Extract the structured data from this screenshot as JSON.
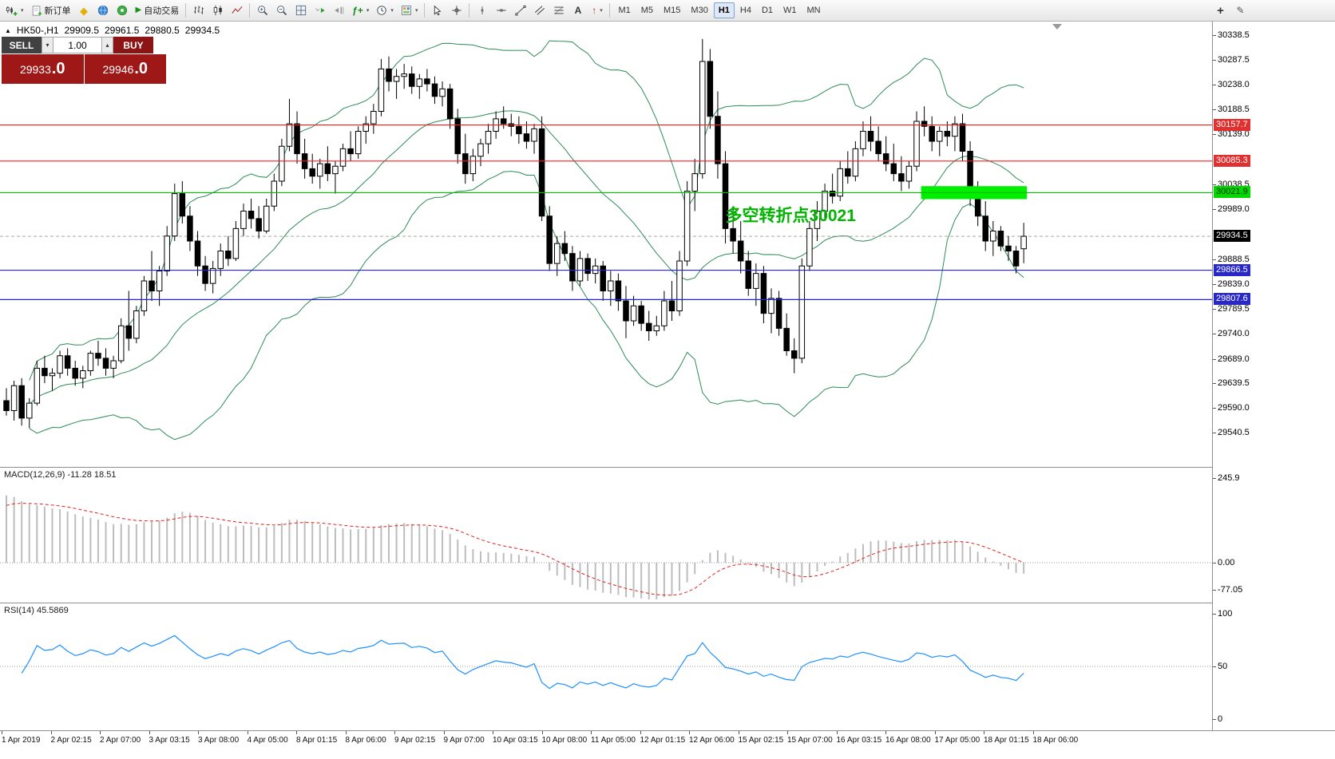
{
  "toolbar": {
    "caret_glyph": "▾",
    "buttons": [
      {
        "name": "new-chart",
        "icon": "new-chart",
        "caret": true
      },
      {
        "name": "new-order",
        "icon": "new-order",
        "label": "新订单"
      },
      {
        "name": "favorites",
        "icon": "diamond"
      },
      {
        "name": "mql5-community",
        "icon": "globe"
      },
      {
        "name": "market",
        "icon": "circle-dot"
      },
      {
        "name": "autotrade",
        "icon": "play",
        "label": "自动交易"
      },
      {
        "sep": true
      },
      {
        "name": "bar-chart",
        "icon": "bars"
      },
      {
        "name": "candlestick-chart",
        "icon": "candles"
      },
      {
        "name": "line-chart",
        "icon": "line"
      },
      {
        "sep": true
      },
      {
        "name": "zoom-in",
        "icon": "zoom-in"
      },
      {
        "name": "zoom-out",
        "icon": "zoom-out"
      },
      {
        "name": "tile-windows",
        "icon": "grid"
      },
      {
        "name": "auto-scroll",
        "icon": "auto-scroll"
      },
      {
        "name": "chart-shift",
        "icon": "chart-shift"
      },
      {
        "name": "indicators",
        "icon": "indicators",
        "caret": true
      },
      {
        "name": "periods",
        "icon": "clock",
        "caret": true
      },
      {
        "name": "templates",
        "icon": "template",
        "caret": true
      },
      {
        "sep": true
      },
      {
        "name": "cursor",
        "icon": "cursor"
      },
      {
        "name": "crosshair",
        "icon": "crosshair"
      },
      {
        "sep": true
      },
      {
        "name": "vertical-line",
        "icon": "vline"
      },
      {
        "name": "horizontal-line",
        "icon": "hline"
      },
      {
        "name": "trendline",
        "icon": "tline"
      },
      {
        "name": "equidistant-channel",
        "icon": "channel"
      },
      {
        "name": "fibonacci",
        "icon": "fibo"
      },
      {
        "name": "text",
        "icon": "text"
      },
      {
        "name": "arrows",
        "icon": "arrow",
        "caret": true
      },
      {
        "sep": true
      }
    ],
    "timeframes": [
      "M1",
      "M5",
      "M15",
      "M30",
      "H1",
      "H4",
      "D1",
      "W1",
      "MN"
    ],
    "active_timeframe": "H1",
    "right_buttons": [
      {
        "name": "add-symbol",
        "icon": "plus"
      },
      {
        "name": "edit",
        "icon": "pencil"
      }
    ]
  },
  "chart": {
    "info": {
      "marker": "▲",
      "symbol": "HK50-,H1",
      "open": "29909.5",
      "high": "29961.5",
      "low": "29880.5",
      "close": "29934.5"
    },
    "trade_panel": {
      "sell_label": "SELL",
      "buy_label": "BUY",
      "volume": "1.00",
      "down_glyph": "▾",
      "up_glyph": "▴",
      "sell_price": "29933",
      "sell_price_pips": ".0",
      "buy_price": "29946",
      "buy_price_pips": ".0"
    },
    "annotation": {
      "text": "多空转折点30021",
      "color": "#00B400",
      "candle_index": 94,
      "price": 29998
    },
    "highlight_rect": {
      "from_index": 120,
      "to_index": 133,
      "price_top": 30035,
      "price_bottom": 30009,
      "color": "#00EE00"
    },
    "hlines": [
      {
        "price": 30157.7,
        "label": "30157.7",
        "color": "#F02020",
        "label_bg": "#E03030",
        "label_fg": "#FFFFFF"
      },
      {
        "price": 30085.3,
        "label": "30085.3",
        "color": "#F02020",
        "label_bg": "#E03030",
        "label_fg": "#FFFFFF"
      },
      {
        "price": 30021.9,
        "label": "30021.9",
        "color": "#00C000",
        "label_bg": "#00D800",
        "label_fg": "#003000"
      },
      {
        "price": 29866.5,
        "label": "29866.5",
        "color": "#2424D8",
        "label_bg": "#2828C8",
        "label_fg": "#FFFFFF"
      },
      {
        "price": 29807.6,
        "label": "29807.6",
        "color": "#2424D8",
        "label_bg": "#2828C8",
        "label_fg": "#FFFFFF"
      }
    ],
    "bid": {
      "price": 29934.5,
      "label": "29934.5",
      "label_bg": "#000000",
      "label_fg": "#FFFFFF"
    },
    "price_axis_labels": [
      "30338.5",
      "30287.5",
      "30238.0",
      "30188.5",
      "30139.0",
      "30038.5",
      "29989.0",
      "29888.5",
      "29839.0",
      "29789.5",
      "29740.0",
      "29689.0",
      "29639.5",
      "29590.0",
      "29540.5"
    ]
  },
  "chart_data": {
    "type": "candlestick",
    "symbol": "HK50-",
    "period": "H1",
    "candles": [
      [
        29605,
        29630,
        29575,
        29585
      ],
      [
        29585,
        29645,
        29565,
        29635
      ],
      [
        29635,
        29650,
        29555,
        29570
      ],
      [
        29570,
        29610,
        29550,
        29600
      ],
      [
        29600,
        29685,
        29595,
        29670
      ],
      [
        29670,
        29695,
        29640,
        29655
      ],
      [
        29655,
        29670,
        29625,
        29660
      ],
      [
        29660,
        29705,
        29650,
        29695
      ],
      [
        29695,
        29710,
        29655,
        29670
      ],
      [
        29670,
        29685,
        29635,
        29650
      ],
      [
        29650,
        29675,
        29630,
        29665
      ],
      [
        29665,
        29705,
        29655,
        29700
      ],
      [
        29700,
        29725,
        29675,
        29690
      ],
      [
        29690,
        29710,
        29655,
        29670
      ],
      [
        29670,
        29695,
        29650,
        29685
      ],
      [
        29685,
        29770,
        29680,
        29755
      ],
      [
        29755,
        29825,
        29705,
        29730
      ],
      [
        29730,
        29795,
        29720,
        29785
      ],
      [
        29785,
        29855,
        29775,
        29845
      ],
      [
        29845,
        29905,
        29805,
        29825
      ],
      [
        29825,
        29875,
        29795,
        29865
      ],
      [
        29865,
        29955,
        29855,
        29935
      ],
      [
        29935,
        30040,
        29925,
        30020
      ],
      [
        30020,
        30045,
        29960,
        29975
      ],
      [
        29975,
        29995,
        29905,
        29925
      ],
      [
        29925,
        29945,
        29855,
        29875
      ],
      [
        29875,
        29895,
        29825,
        29840
      ],
      [
        29840,
        29885,
        29820,
        29870
      ],
      [
        29870,
        29920,
        29855,
        29905
      ],
      [
        29905,
        29935,
        29875,
        29890
      ],
      [
        29890,
        29965,
        29885,
        29950
      ],
      [
        29950,
        30000,
        29935,
        29985
      ],
      [
        29985,
        30010,
        29950,
        29970
      ],
      [
        29970,
        29995,
        29930,
        29945
      ],
      [
        29945,
        30010,
        29940,
        29995
      ],
      [
        29995,
        30060,
        29985,
        30045
      ],
      [
        30045,
        30130,
        30035,
        30115
      ],
      [
        30115,
        30210,
        30105,
        30160
      ],
      [
        30160,
        30185,
        30080,
        30100
      ],
      [
        30100,
        30130,
        30050,
        30070
      ],
      [
        30070,
        30100,
        30040,
        30055
      ],
      [
        30055,
        30090,
        30030,
        30080
      ],
      [
        30080,
        30115,
        30045,
        30060
      ],
      [
        30060,
        30085,
        30020,
        30075
      ],
      [
        30075,
        30120,
        30065,
        30110
      ],
      [
        30110,
        30145,
        30085,
        30100
      ],
      [
        30100,
        30155,
        30090,
        30145
      ],
      [
        30145,
        30175,
        30120,
        30160
      ],
      [
        30160,
        30200,
        30140,
        30185
      ],
      [
        30185,
        30290,
        30175,
        30270
      ],
      [
        30270,
        30295,
        30225,
        30245
      ],
      [
        30245,
        30270,
        30210,
        30255
      ],
      [
        30255,
        30280,
        30230,
        30260
      ],
      [
        30260,
        30275,
        30220,
        30235
      ],
      [
        30235,
        30260,
        30210,
        30250
      ],
      [
        30250,
        30270,
        30225,
        30240
      ],
      [
        30240,
        30255,
        30200,
        30215
      ],
      [
        30215,
        30245,
        30195,
        30230
      ],
      [
        30230,
        30240,
        30150,
        30170
      ],
      [
        30170,
        30190,
        30080,
        30100
      ],
      [
        30100,
        30140,
        30040,
        30060
      ],
      [
        30060,
        30110,
        30045,
        30095
      ],
      [
        30095,
        30130,
        30075,
        30120
      ],
      [
        30120,
        30160,
        30100,
        30145
      ],
      [
        30145,
        30185,
        30130,
        30170
      ],
      [
        30170,
        30195,
        30150,
        30160
      ],
      [
        30160,
        30180,
        30135,
        30155
      ],
      [
        30155,
        30175,
        30120,
        30140
      ],
      [
        30140,
        30165,
        30110,
        30125
      ],
      [
        30125,
        30160,
        30100,
        30150
      ],
      [
        30150,
        30175,
        29965,
        29975
      ],
      [
        29975,
        29995,
        29865,
        29880
      ],
      [
        29880,
        29935,
        29855,
        29920
      ],
      [
        29920,
        29945,
        29885,
        29900
      ],
      [
        29900,
        29915,
        29825,
        29845
      ],
      [
        29845,
        29905,
        29835,
        29890
      ],
      [
        29890,
        29900,
        29845,
        29860
      ],
      [
        29860,
        29890,
        29840,
        29875
      ],
      [
        29875,
        29885,
        29805,
        29825
      ],
      [
        29825,
        29865,
        29795,
        29845
      ],
      [
        29845,
        29860,
        29785,
        29805
      ],
      [
        29805,
        29835,
        29730,
        29765
      ],
      [
        29765,
        29815,
        29755,
        29795
      ],
      [
        29795,
        29805,
        29745,
        29760
      ],
      [
        29760,
        29785,
        29725,
        29745
      ],
      [
        29745,
        29775,
        29735,
        29755
      ],
      [
        29755,
        29825,
        29745,
        29805
      ],
      [
        29805,
        29845,
        29765,
        29785
      ],
      [
        29785,
        29905,
        29775,
        29885
      ],
      [
        29885,
        30045,
        29875,
        30025
      ],
      [
        30025,
        30090,
        29985,
        30060
      ],
      [
        30060,
        30330,
        30050,
        30285
      ],
      [
        30285,
        30310,
        30150,
        30175
      ],
      [
        30175,
        30225,
        30050,
        30080
      ],
      [
        30080,
        30105,
        29920,
        29950
      ],
      [
        29950,
        29995,
        29900,
        29925
      ],
      [
        29925,
        29965,
        29860,
        29885
      ],
      [
        29885,
        29905,
        29815,
        29830
      ],
      [
        29830,
        29880,
        29795,
        29860
      ],
      [
        29860,
        29875,
        29760,
        29780
      ],
      [
        29780,
        29830,
        29740,
        29810
      ],
      [
        29810,
        29825,
        29735,
        29750
      ],
      [
        29750,
        29780,
        29695,
        29705
      ],
      [
        29705,
        29730,
        29660,
        29690
      ],
      [
        29690,
        29890,
        29680,
        29875
      ],
      [
        29875,
        29965,
        29865,
        29950
      ],
      [
        29950,
        30005,
        29925,
        29985
      ],
      [
        29985,
        30040,
        29965,
        30025
      ],
      [
        30025,
        30060,
        30000,
        30015
      ],
      [
        30015,
        30085,
        30005,
        30070
      ],
      [
        30070,
        30105,
        30040,
        30055
      ],
      [
        30055,
        30125,
        30045,
        30110
      ],
      [
        30110,
        30165,
        30095,
        30145
      ],
      [
        30145,
        30175,
        30105,
        30125
      ],
      [
        30125,
        30155,
        30085,
        30100
      ],
      [
        30100,
        30135,
        30065,
        30080
      ],
      [
        30080,
        30120,
        30045,
        30060
      ],
      [
        30060,
        30095,
        30025,
        30045
      ],
      [
        30045,
        30085,
        30030,
        30075
      ],
      [
        30075,
        30185,
        30065,
        30165
      ],
      [
        30165,
        30195,
        30135,
        30155
      ],
      [
        30155,
        30175,
        30105,
        30125
      ],
      [
        30125,
        30155,
        30095,
        30145
      ],
      [
        30145,
        30165,
        30115,
        30135
      ],
      [
        30135,
        30175,
        30105,
        30160
      ],
      [
        30160,
        30180,
        30085,
        30105
      ],
      [
        30105,
        30125,
        29995,
        30015
      ],
      [
        30015,
        30045,
        29955,
        29975
      ],
      [
        29975,
        30005,
        29905,
        29925
      ],
      [
        29925,
        29965,
        29895,
        29945
      ],
      [
        29945,
        29955,
        29905,
        29915
      ],
      [
        29915,
        29935,
        29885,
        29905
      ],
      [
        29905,
        29915,
        29860,
        29875
      ],
      [
        29909.5,
        29961.5,
        29880.5,
        29934.5
      ]
    ],
    "bollinger": {
      "period": 20,
      "devi": 2,
      "deviation": 2,
      "color": "#2E8B57"
    },
    "macd": {
      "label": "MACD(12,26,9)",
      "values": "-11.28 18.51",
      "fast": 12,
      "slow": 26,
      "signal": 9,
      "axis_labels": [
        "245.9",
        "0.00",
        "-77.05"
      ],
      "bar_color": "#BDBDBD",
      "signal_color": "#E02020"
    },
    "rsi": {
      "label": "RSI(14)",
      "value": "45.5869",
      "period": 14,
      "axis_labels": [
        "100",
        "50",
        "0"
      ],
      "line_color": "#1E90FF"
    }
  },
  "time_axis": {
    "labels": [
      "1 Apr 2019",
      "2 Apr 02:15",
      "2 Apr 07:00",
      "3 Apr 03:15",
      "3 Apr 08:00",
      "4 Apr 05:00",
      "8 Apr 01:15",
      "8 Apr 06:00",
      "9 Apr 02:15",
      "9 Apr 07:00",
      "10 Apr 03:15",
      "10 Apr 08:00",
      "11 Apr 05:00",
      "12 Apr 01:15",
      "12 Apr 06:00",
      "15 Apr 02:15",
      "15 Apr 07:00",
      "16 Apr 03:15",
      "16 Apr 08:00",
      "17 Apr 05:00",
      "18 Apr 01:15",
      "18 Apr 06:00"
    ]
  }
}
